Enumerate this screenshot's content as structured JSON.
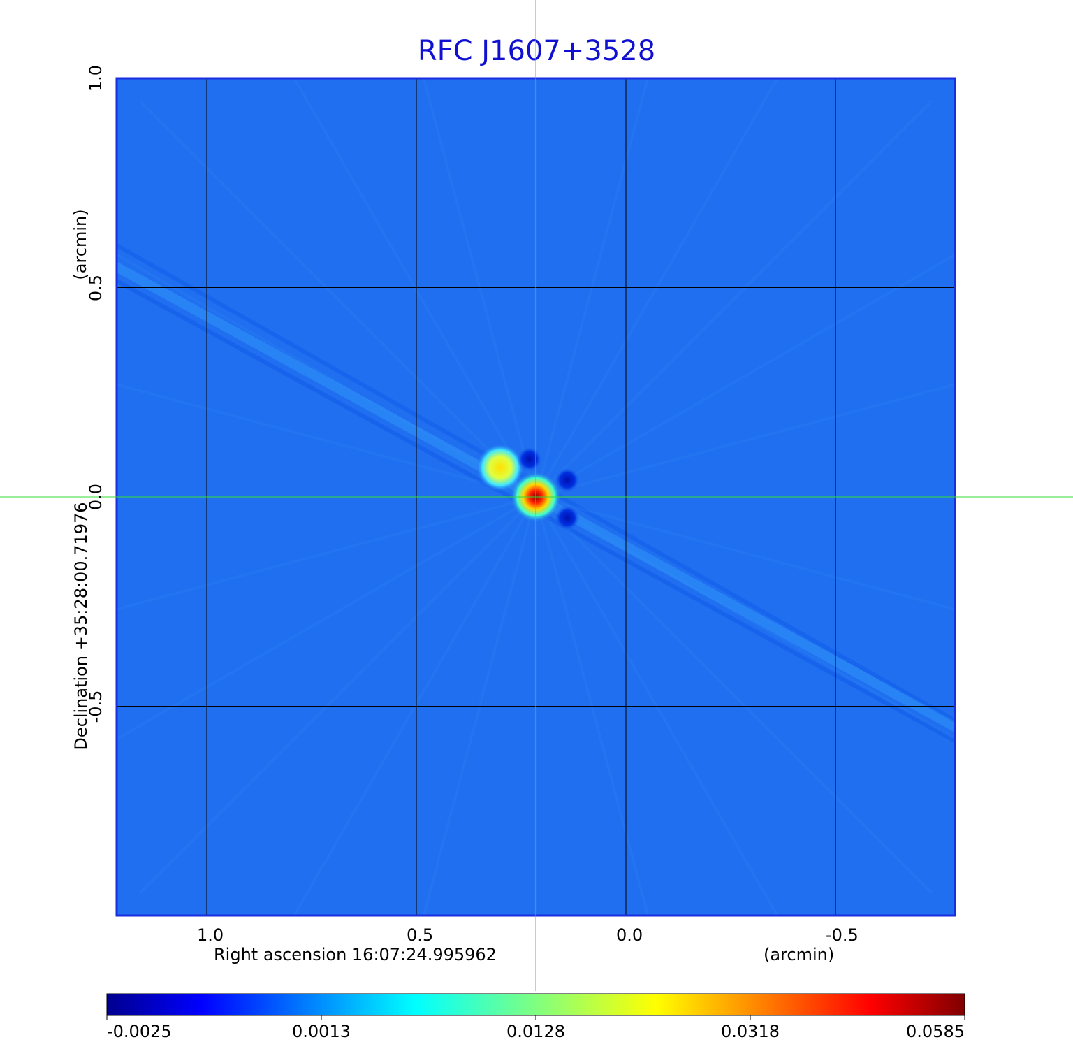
{
  "chart_data": {
    "type": "heatmap",
    "title": "RFC J1607+3528",
    "xlabel": "Right ascension  16:07:24.995962",
    "xunit": "(arcmin)",
    "ylabel": "Declination  +35:28:00.71976",
    "yunit": "(arcmin)",
    "x_ticks": [
      1.0,
      0.5,
      0.0,
      -0.5
    ],
    "x_tick_labels": [
      "1.0",
      "0.5",
      "0.0",
      "-0.5"
    ],
    "y_ticks": [
      1.0,
      0.5,
      0.0,
      -0.5
    ],
    "y_tick_labels": [
      "1.0",
      "0.5",
      "0.0",
      "-0.5"
    ],
    "xlim": [
      1.215,
      -0.785
    ],
    "ylim": [
      -1.0,
      1.0
    ],
    "grid": true,
    "colormap": "jet",
    "colorbar_ticks": [
      "-0.0025",
      "0.0013",
      "0.0128",
      "0.0318",
      "0.0585"
    ],
    "crosshair": {
      "x": 0.215,
      "y": 0.0
    },
    "sources": [
      {
        "x": 0.215,
        "y": 0.0,
        "level": 1.0
      },
      {
        "x": 0.3,
        "y": 0.07,
        "level": 0.62
      }
    ],
    "negative_features": [
      {
        "x": 0.23,
        "y": 0.09
      },
      {
        "x": 0.14,
        "y": 0.04
      },
      {
        "x": 0.14,
        "y": -0.05
      }
    ]
  },
  "colors": {
    "title": "#1010d0",
    "frame": "#1a2ee0",
    "background_map": "#1f6ff0",
    "crosshair": "#33dd33",
    "grid": "#000000"
  }
}
